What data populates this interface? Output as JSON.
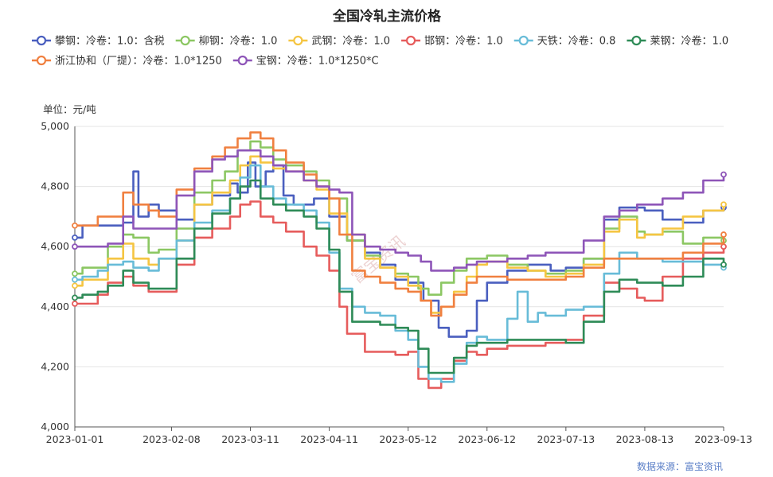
{
  "chart_data": {
    "type": "line",
    "title": "全国冷轧主流价格",
    "ylabel": "单位：元/吨",
    "source": "数据来源：富宝资讯",
    "watermark": "富宝资讯",
    "ylim": [
      4000,
      5000
    ],
    "yticks": [
      "4,000",
      "4,200",
      "4,400",
      "4,600",
      "4,800",
      "5,000"
    ],
    "xlim": [
      "2023-01-01",
      "2023-09-13"
    ],
    "xticks": [
      "2023-01-01",
      "2023-02-08",
      "2023-03-11",
      "2023-04-11",
      "2023-05-12",
      "2023-06-12",
      "2023-07-13",
      "2023-08-13",
      "2023-09-13"
    ],
    "grid": true,
    "legend_position": "top",
    "series": [
      {
        "name": "攀钢：冷卷：1.0：含税",
        "color": "#4a5fbf",
        "x": [
          "2023-01-01",
          "2023-01-04",
          "2023-01-20",
          "2023-01-24",
          "2023-01-26",
          "2023-01-30",
          "2023-02-03",
          "2023-02-10",
          "2023-02-17",
          "2023-02-24",
          "2023-03-03",
          "2023-03-06",
          "2023-03-10",
          "2023-03-13",
          "2023-03-17",
          "2023-03-20",
          "2023-03-24",
          "2023-03-28",
          "2023-04-05",
          "2023-04-11",
          "2023-04-18",
          "2023-04-25",
          "2023-05-01",
          "2023-05-07",
          "2023-05-12",
          "2023-05-18",
          "2023-05-24",
          "2023-05-28",
          "2023-06-04",
          "2023-06-08",
          "2023-06-12",
          "2023-06-20",
          "2023-06-28",
          "2023-07-07",
          "2023-07-13",
          "2023-07-20",
          "2023-07-28",
          "2023-08-03",
          "2023-08-10",
          "2023-08-13",
          "2023-08-20",
          "2023-08-28",
          "2023-09-05",
          "2023-09-13"
        ],
        "y": [
          4630,
          4670,
          4680,
          4850,
          4700,
          4740,
          4720,
          4690,
          4740,
          4770,
          4810,
          4780,
          4880,
          4800,
          4850,
          4870,
          4770,
          4740,
          4760,
          4700,
          4620,
          4580,
          4540,
          4490,
          4480,
          4420,
          4330,
          4300,
          4320,
          4420,
          4480,
          4520,
          4540,
          4520,
          4530,
          4560,
          4690,
          4730,
          4730,
          4720,
          4690,
          4680,
          4720,
          4730
        ]
      },
      {
        "name": "柳钢：冷卷：1.0",
        "color": "#8cc763",
        "x": [
          "2023-01-01",
          "2023-01-04",
          "2023-01-14",
          "2023-01-20",
          "2023-01-24",
          "2023-01-30",
          "2023-02-03",
          "2023-02-10",
          "2023-02-17",
          "2023-02-24",
          "2023-03-01",
          "2023-03-06",
          "2023-03-11",
          "2023-03-15",
          "2023-03-20",
          "2023-03-25",
          "2023-04-01",
          "2023-04-06",
          "2023-04-11",
          "2023-04-18",
          "2023-04-25",
          "2023-05-01",
          "2023-05-07",
          "2023-05-12",
          "2023-05-16",
          "2023-05-20",
          "2023-05-25",
          "2023-05-30",
          "2023-06-04",
          "2023-06-08",
          "2023-06-12",
          "2023-06-20",
          "2023-06-28",
          "2023-07-05",
          "2023-07-13",
          "2023-07-20",
          "2023-07-28",
          "2023-08-03",
          "2023-08-10",
          "2023-08-13",
          "2023-08-20",
          "2023-08-28",
          "2023-09-05",
          "2023-09-13"
        ],
        "y": [
          4510,
          4530,
          4600,
          4640,
          4630,
          4580,
          4590,
          4660,
          4780,
          4820,
          4850,
          4920,
          4950,
          4930,
          4890,
          4870,
          4850,
          4820,
          4760,
          4620,
          4570,
          4530,
          4510,
          4500,
          4460,
          4440,
          4480,
          4520,
          4560,
          4560,
          4570,
          4540,
          4520,
          4510,
          4520,
          4560,
          4660,
          4700,
          4650,
          4640,
          4650,
          4610,
          4630,
          4620
        ]
      },
      {
        "name": "武钢：冷卷：1.0",
        "color": "#f5c542",
        "x": [
          "2023-01-01",
          "2023-01-04",
          "2023-01-14",
          "2023-01-20",
          "2023-01-24",
          "2023-01-30",
          "2023-02-03",
          "2023-02-10",
          "2023-02-17",
          "2023-02-24",
          "2023-03-03",
          "2023-03-07",
          "2023-03-11",
          "2023-03-15",
          "2023-03-20",
          "2023-03-25",
          "2023-04-01",
          "2023-04-06",
          "2023-04-11",
          "2023-04-18",
          "2023-04-25",
          "2023-05-01",
          "2023-05-07",
          "2023-05-12",
          "2023-05-17",
          "2023-05-21",
          "2023-05-25",
          "2023-05-30",
          "2023-06-04",
          "2023-06-08",
          "2023-06-12",
          "2023-06-20",
          "2023-06-28",
          "2023-07-05",
          "2023-07-13",
          "2023-07-20",
          "2023-07-28",
          "2023-08-03",
          "2023-08-10",
          "2023-08-13",
          "2023-08-20",
          "2023-08-28",
          "2023-09-05",
          "2023-09-13"
        ],
        "y": [
          4470,
          4490,
          4560,
          4610,
          4560,
          4540,
          4560,
          4620,
          4740,
          4780,
          4820,
          4870,
          4900,
          4880,
          4860,
          4850,
          4820,
          4790,
          4710,
          4640,
          4560,
          4530,
          4500,
          4470,
          4420,
          4380,
          4400,
          4450,
          4500,
          4540,
          4550,
          4530,
          4520,
          4500,
          4510,
          4540,
          4650,
          4690,
          4630,
          4640,
          4660,
          4700,
          4720,
          4740
        ]
      },
      {
        "name": "邯钢：冷卷：1.0",
        "color": "#e65c5c",
        "x": [
          "2023-01-01",
          "2023-01-04",
          "2023-01-10",
          "2023-01-14",
          "2023-01-20",
          "2023-01-24",
          "2023-01-30",
          "2023-02-03",
          "2023-02-10",
          "2023-02-17",
          "2023-02-24",
          "2023-03-03",
          "2023-03-07",
          "2023-03-11",
          "2023-03-15",
          "2023-03-20",
          "2023-03-25",
          "2023-04-01",
          "2023-04-06",
          "2023-04-11",
          "2023-04-15",
          "2023-04-18",
          "2023-04-25",
          "2023-05-01",
          "2023-05-07",
          "2023-05-12",
          "2023-05-16",
          "2023-05-20",
          "2023-05-25",
          "2023-05-30",
          "2023-06-04",
          "2023-06-08",
          "2023-06-12",
          "2023-06-20",
          "2023-06-28",
          "2023-07-05",
          "2023-07-13",
          "2023-07-20",
          "2023-07-28",
          "2023-08-03",
          "2023-08-10",
          "2023-08-13",
          "2023-08-20",
          "2023-08-28",
          "2023-09-05",
          "2023-09-13"
        ],
        "y": [
          4410,
          4410,
          4440,
          4480,
          4500,
          4470,
          4450,
          4450,
          4540,
          4630,
          4660,
          4700,
          4740,
          4750,
          4700,
          4680,
          4650,
          4600,
          4570,
          4520,
          4400,
          4310,
          4250,
          4250,
          4240,
          4250,
          4160,
          4130,
          4160,
          4220,
          4250,
          4240,
          4260,
          4270,
          4270,
          4280,
          4290,
          4370,
          4480,
          4460,
          4430,
          4420,
          4500,
          4560,
          4580,
          4600
        ]
      },
      {
        "name": "天铁：冷卷：0.8",
        "color": "#68bcd8",
        "x": [
          "2023-01-01",
          "2023-01-04",
          "2023-01-10",
          "2023-01-14",
          "2023-01-20",
          "2023-01-24",
          "2023-01-30",
          "2023-02-03",
          "2023-02-10",
          "2023-02-17",
          "2023-02-24",
          "2023-03-03",
          "2023-03-07",
          "2023-03-11",
          "2023-03-15",
          "2023-03-20",
          "2023-03-25",
          "2023-04-01",
          "2023-04-06",
          "2023-04-11",
          "2023-04-15",
          "2023-04-20",
          "2023-04-25",
          "2023-05-01",
          "2023-05-07",
          "2023-05-12",
          "2023-05-16",
          "2023-05-20",
          "2023-05-25",
          "2023-05-30",
          "2023-06-04",
          "2023-06-08",
          "2023-06-12",
          "2023-06-20",
          "2023-06-24",
          "2023-06-28",
          "2023-07-02",
          "2023-07-05",
          "2023-07-13",
          "2023-07-20",
          "2023-07-28",
          "2023-08-03",
          "2023-08-10",
          "2023-08-13",
          "2023-08-20",
          "2023-08-28",
          "2023-09-05",
          "2023-09-13"
        ],
        "y": [
          4490,
          4500,
          4520,
          4540,
          4550,
          4530,
          4520,
          4560,
          4620,
          4680,
          4720,
          4760,
          4830,
          4870,
          4800,
          4760,
          4740,
          4720,
          4680,
          4580,
          4460,
          4400,
          4380,
          4370,
          4320,
          4290,
          4200,
          4160,
          4150,
          4210,
          4280,
          4300,
          4290,
          4360,
          4450,
          4350,
          4380,
          4370,
          4390,
          4400,
          4510,
          4580,
          4560,
          4560,
          4550,
          4550,
          4540,
          4530
        ]
      },
      {
        "name": "莱钢：冷卷：1.0",
        "color": "#2e8b57",
        "x": [
          "2023-01-01",
          "2023-01-04",
          "2023-01-10",
          "2023-01-14",
          "2023-01-20",
          "2023-01-24",
          "2023-01-30",
          "2023-02-03",
          "2023-02-10",
          "2023-02-17",
          "2023-02-24",
          "2023-03-03",
          "2023-03-07",
          "2023-03-11",
          "2023-03-15",
          "2023-03-20",
          "2023-03-25",
          "2023-04-01",
          "2023-04-06",
          "2023-04-11",
          "2023-04-15",
          "2023-04-20",
          "2023-04-25",
          "2023-05-01",
          "2023-05-07",
          "2023-05-12",
          "2023-05-16",
          "2023-05-20",
          "2023-05-25",
          "2023-05-30",
          "2023-06-04",
          "2023-06-08",
          "2023-06-12",
          "2023-06-20",
          "2023-06-28",
          "2023-07-05",
          "2023-07-13",
          "2023-07-20",
          "2023-07-28",
          "2023-08-03",
          "2023-08-10",
          "2023-08-13",
          "2023-08-20",
          "2023-08-28",
          "2023-09-05",
          "2023-09-13"
        ],
        "y": [
          4430,
          4440,
          4450,
          4470,
          4520,
          4480,
          4460,
          4460,
          4560,
          4660,
          4710,
          4760,
          4800,
          4820,
          4760,
          4740,
          4720,
          4700,
          4660,
          4590,
          4450,
          4350,
          4350,
          4340,
          4330,
          4320,
          4260,
          4180,
          4180,
          4230,
          4270,
          4280,
          4280,
          4290,
          4290,
          4290,
          4280,
          4350,
          4450,
          4490,
          4480,
          4480,
          4470,
          4500,
          4560,
          4540
        ]
      },
      {
        "name": "浙江协和（厂提）：冷卷：1.0*1250",
        "color": "#f08040",
        "x": [
          "2023-01-01",
          "2023-01-04",
          "2023-01-10",
          "2023-01-14",
          "2023-01-20",
          "2023-01-24",
          "2023-01-30",
          "2023-02-03",
          "2023-02-10",
          "2023-02-17",
          "2023-02-24",
          "2023-03-01",
          "2023-03-06",
          "2023-03-11",
          "2023-03-15",
          "2023-03-20",
          "2023-03-25",
          "2023-04-01",
          "2023-04-06",
          "2023-04-11",
          "2023-04-15",
          "2023-04-20",
          "2023-04-25",
          "2023-05-01",
          "2023-05-07",
          "2023-05-12",
          "2023-05-17",
          "2023-05-21",
          "2023-05-25",
          "2023-05-30",
          "2023-06-04",
          "2023-06-08",
          "2023-06-12",
          "2023-06-20",
          "2023-06-28",
          "2023-07-05",
          "2023-07-13",
          "2023-07-20",
          "2023-07-28",
          "2023-08-03",
          "2023-08-10",
          "2023-08-13",
          "2023-08-20",
          "2023-08-28",
          "2023-09-05",
          "2023-09-13"
        ],
        "y": [
          4670,
          4670,
          4700,
          4700,
          4780,
          4740,
          4720,
          4700,
          4790,
          4860,
          4900,
          4930,
          4960,
          4980,
          4960,
          4920,
          4880,
          4840,
          4800,
          4760,
          4640,
          4520,
          4500,
          4480,
          4460,
          4450,
          4420,
          4370,
          4400,
          4440,
          4480,
          4500,
          4500,
          4490,
          4490,
          4490,
          4500,
          4530,
          4560,
          4560,
          4560,
          4560,
          4560,
          4580,
          4610,
          4640
        ]
      },
      {
        "name": "宝钢：冷卷：1.0*1250*C",
        "color": "#8e55b8",
        "x": [
          "2023-01-01",
          "2023-01-04",
          "2023-01-14",
          "2023-01-20",
          "2023-01-24",
          "2023-01-30",
          "2023-02-03",
          "2023-02-10",
          "2023-02-17",
          "2023-02-24",
          "2023-03-01",
          "2023-03-06",
          "2023-03-11",
          "2023-03-15",
          "2023-03-20",
          "2023-03-25",
          "2023-04-01",
          "2023-04-06",
          "2023-04-11",
          "2023-04-15",
          "2023-04-20",
          "2023-04-25",
          "2023-05-01",
          "2023-05-07",
          "2023-05-12",
          "2023-05-17",
          "2023-05-21",
          "2023-05-25",
          "2023-05-30",
          "2023-06-04",
          "2023-06-08",
          "2023-06-12",
          "2023-06-20",
          "2023-06-28",
          "2023-07-05",
          "2023-07-13",
          "2023-07-20",
          "2023-07-28",
          "2023-08-03",
          "2023-08-10",
          "2023-08-13",
          "2023-08-20",
          "2023-08-28",
          "2023-09-05",
          "2023-09-13"
        ],
        "y": [
          4600,
          4600,
          4610,
          4700,
          4660,
          4660,
          4660,
          4770,
          4850,
          4890,
          4900,
          4920,
          4920,
          4900,
          4870,
          4850,
          4820,
          4800,
          4790,
          4780,
          4640,
          4600,
          4590,
          4580,
          4570,
          4550,
          4520,
          4520,
          4530,
          4540,
          4550,
          4550,
          4560,
          4570,
          4580,
          4580,
          4620,
          4700,
          4720,
          4740,
          4740,
          4760,
          4780,
          4820,
          4840
        ]
      }
    ]
  }
}
